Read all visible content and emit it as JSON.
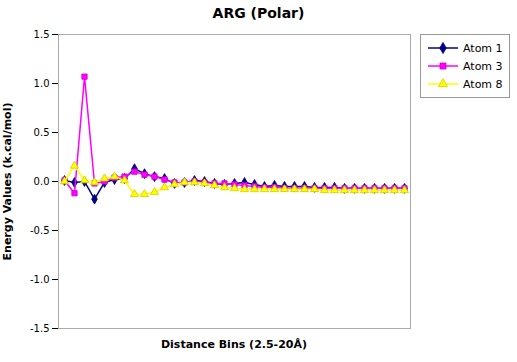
{
  "chart_data": {
    "type": "line",
    "title": "ARG (Polar)",
    "xlabel": "Distance Bins (2.5-20Å)",
    "ylabel": "Energy Values (k.cal/mol)",
    "series": [
      {
        "name": "Atom 1",
        "color": "#00008B",
        "marker": "diamond",
        "values": [
          0.01,
          -0.01,
          0.0,
          -0.18,
          -0.01,
          0.02,
          0.03,
          0.13,
          0.08,
          0.05,
          0.03,
          -0.02,
          -0.01,
          0.01,
          0.0,
          -0.02,
          -0.03,
          -0.02,
          -0.01,
          -0.03,
          -0.05,
          -0.04,
          -0.05,
          -0.05,
          -0.05,
          -0.06,
          -0.06,
          -0.06,
          -0.07,
          -0.07,
          -0.07,
          -0.07,
          -0.07,
          -0.07,
          -0.07
        ]
      },
      {
        "name": "Atom 3",
        "color": "#FF00FF",
        "marker": "square",
        "values": [
          0.01,
          -0.12,
          1.07,
          -0.02,
          0.0,
          0.04,
          0.05,
          0.1,
          0.07,
          0.05,
          0.02,
          -0.01,
          -0.01,
          0.0,
          -0.01,
          -0.02,
          -0.02,
          -0.03,
          -0.04,
          -0.05,
          -0.06,
          -0.06,
          -0.07,
          -0.07,
          -0.07,
          -0.07,
          -0.07,
          -0.07,
          -0.07,
          -0.07,
          -0.07,
          -0.07,
          -0.07,
          -0.07,
          -0.07
        ]
      },
      {
        "name": "Atom 8",
        "color": "#FFFF00",
        "marker": "triangle",
        "values": [
          0.0,
          0.16,
          0.01,
          -0.01,
          0.03,
          0.05,
          0.01,
          -0.13,
          -0.13,
          -0.11,
          -0.06,
          -0.03,
          -0.01,
          -0.01,
          -0.02,
          -0.04,
          -0.06,
          -0.07,
          -0.08,
          -0.08,
          -0.08,
          -0.08,
          -0.08,
          -0.08,
          -0.08,
          -0.08,
          -0.09,
          -0.09,
          -0.09,
          -0.09,
          -0.09,
          -0.09,
          -0.09,
          -0.09,
          -0.09
        ]
      }
    ],
    "ylim": [
      -1.5,
      1.5
    ],
    "yticks": [
      -1.5,
      {
        "value": -1,
        "label": "-1.0"
      },
      -0.5,
      {
        "value": 0,
        "label": "0.0"
      },
      0.5,
      {
        "value": 1,
        "label": "1.0"
      },
      1.5
    ],
    "grid": false,
    "legend": "right",
    "tick_labels": "y"
  }
}
